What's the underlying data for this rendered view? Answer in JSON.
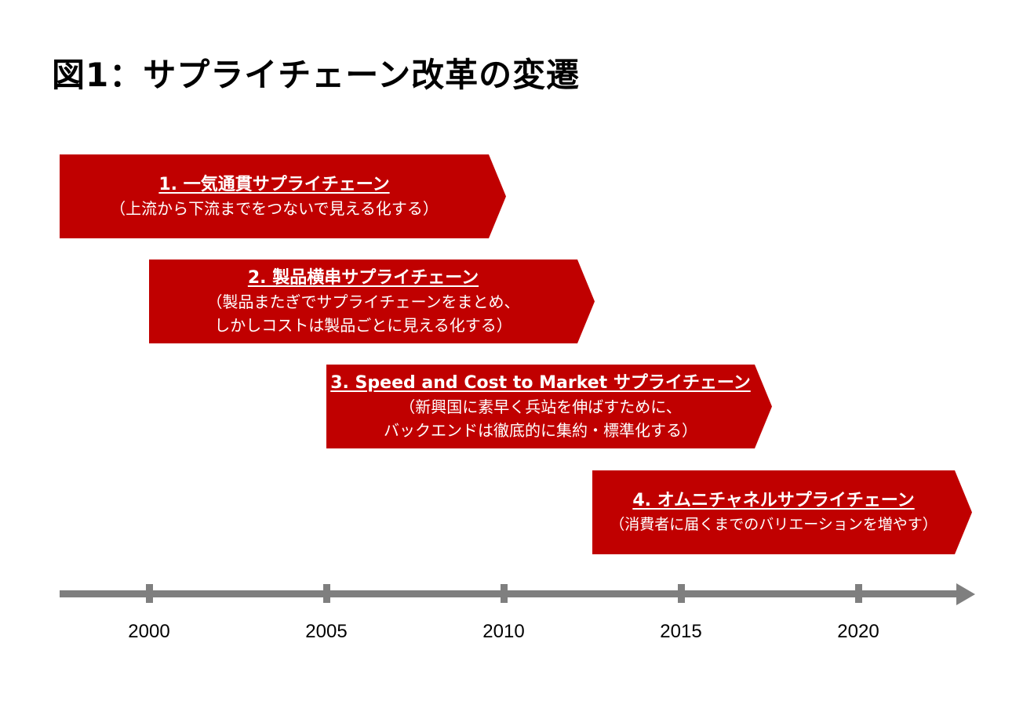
{
  "title": "図1：サプライチェーン改革の変遷",
  "phases": [
    {
      "heading": "1. 一気通貫サプライチェーン",
      "description": [
        "（上流から下流までをつないで見える化する）"
      ]
    },
    {
      "heading": "2. 製品横串サプライチェーン",
      "description": [
        "（製品またぎでサプライチェーンをまとめ、",
        "しかしコストは製品ごとに見える化する）"
      ]
    },
    {
      "heading": "3. Speed and Cost to Market サプライチェーン",
      "description": [
        "（新興国に素早く兵站を伸ばすために、",
        "バックエンドは徹底的に集約・標準化する）"
      ]
    },
    {
      "heading": "4. オムニチャネルサプライチェーン",
      "description": [
        "（消費者に届くまでのバリエーションを増やす）"
      ]
    }
  ],
  "timeline": {
    "years": [
      "2000",
      "2005",
      "2010",
      "2015",
      "2020"
    ]
  },
  "colors": {
    "arrow_fill": "#c00000",
    "axis": "#7f7f7f"
  }
}
